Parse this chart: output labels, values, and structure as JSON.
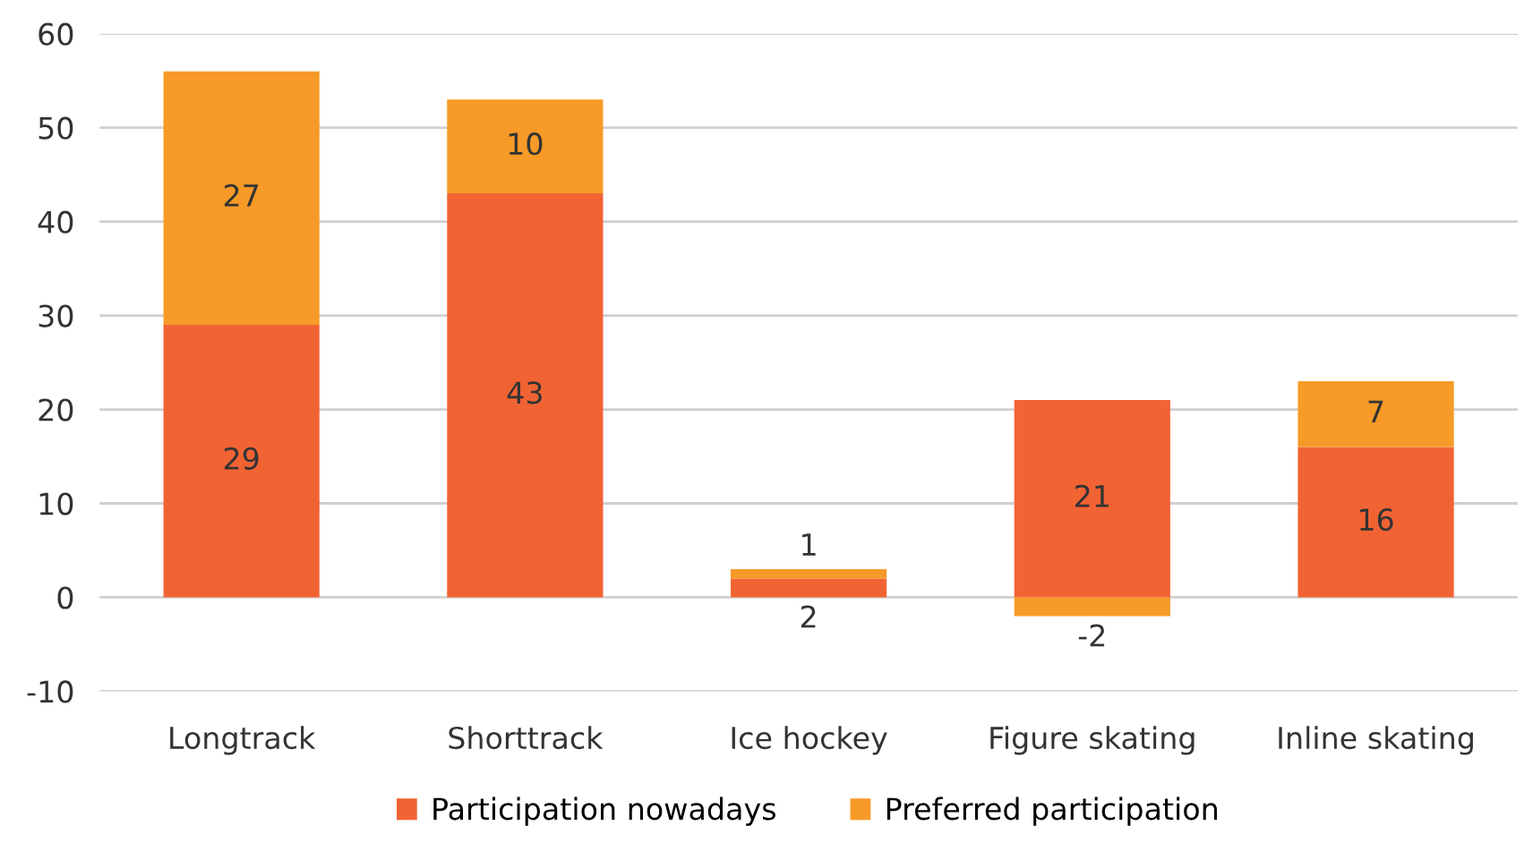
{
  "chart_data": {
    "type": "bar",
    "stacked": true,
    "categories": [
      "Longtrack",
      "Shorttrack",
      "Ice hockey",
      "Figure skating",
      "Inline skating"
    ],
    "series": [
      {
        "name": "Participation nowadays",
        "color": "#f26334",
        "values": [
          29,
          43,
          2,
          21,
          16
        ]
      },
      {
        "name": "Preferred participation",
        "color": "#f79a27",
        "values": [
          27,
          10,
          1,
          -2,
          7
        ]
      }
    ],
    "ylim": [
      -10,
      60
    ],
    "yticks": [
      -10,
      0,
      10,
      20,
      30,
      40,
      50,
      60
    ],
    "grid": "y",
    "legend": "bottom",
    "data_labels": true
  }
}
